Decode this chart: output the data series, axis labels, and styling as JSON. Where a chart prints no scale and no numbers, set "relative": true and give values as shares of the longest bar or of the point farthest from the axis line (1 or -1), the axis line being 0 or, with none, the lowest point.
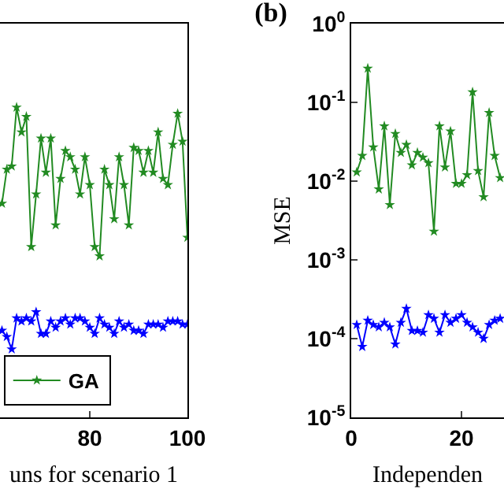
{
  "chart_data": [
    {
      "type": "line",
      "relative": true,
      "tick_labels": "x",
      "xlabel": "uns for scenario 1",
      "xlim": [
        61.6,
        100
      ],
      "xticks": [
        80,
        100
      ],
      "legend": "bottom",
      "marker": "star",
      "grid": false,
      "x": [
        62,
        63,
        64,
        65,
        66,
        67,
        68,
        69,
        70,
        71,
        72,
        73,
        74,
        75,
        76,
        77,
        78,
        79,
        80,
        81,
        82,
        83,
        84,
        85,
        86,
        87,
        88,
        89,
        90,
        91,
        92,
        93,
        94,
        95,
        96,
        97,
        98,
        99,
        100
      ],
      "series": [
        {
          "name": "GA",
          "color": "#228b22",
          "values": [
            0.69,
            0.8,
            0.81,
            1.0,
            0.92,
            0.97,
            0.55,
            0.72,
            0.9,
            0.79,
            0.9,
            0.62,
            0.77,
            0.86,
            0.84,
            0.8,
            0.72,
            0.84,
            0.75,
            0.55,
            0.52,
            0.8,
            0.75,
            0.64,
            0.84,
            0.75,
            0.62,
            0.87,
            0.86,
            0.79,
            0.86,
            0.79,
            0.92,
            0.77,
            0.75,
            0.88,
            0.98,
            0.89,
            0.58
          ]
        },
        {
          "color": "#0000ff",
          "values": [
            0.28,
            0.26,
            0.22,
            0.32,
            0.31,
            0.32,
            0.31,
            0.34,
            0.27,
            0.27,
            0.31,
            0.29,
            0.31,
            0.32,
            0.3,
            0.32,
            0.32,
            0.31,
            0.29,
            0.27,
            0.32,
            0.3,
            0.29,
            0.27,
            0.31,
            0.29,
            0.3,
            0.28,
            0.28,
            0.27,
            0.3,
            0.3,
            0.3,
            0.29,
            0.31,
            0.31,
            0.31,
            0.3,
            0.3
          ]
        }
      ]
    },
    {
      "type": "line",
      "title": "(b)",
      "xlabel": "Independen",
      "ylabel": "MSE",
      "log": true,
      "xlim": [
        0,
        27.7
      ],
      "xticks": [
        0,
        20
      ],
      "ylim": [
        1e-05,
        1
      ],
      "yticks": [
        {
          "value": 1,
          "label": "10$^{0}$"
        },
        {
          "value": 0.1,
          "label": "10$^{-1}$"
        },
        {
          "value": 0.01,
          "label": "10$^{-2}$"
        },
        {
          "value": 0.001,
          "label": "10$^{-3}$"
        },
        {
          "value": 0.0001,
          "label": "10$^{-4}$"
        },
        {
          "value": 1e-05,
          "label": "10$^{-5}$"
        }
      ],
      "marker": "star",
      "grid": false,
      "x": [
        1,
        2,
        3,
        4,
        5,
        6,
        7,
        8,
        9,
        10,
        11,
        12,
        13,
        14,
        15,
        16,
        17,
        18,
        19,
        20,
        21,
        22,
        23,
        24,
        25,
        26,
        27
      ],
      "series": [
        {
          "color": "#228b22",
          "values": [
            0.013,
            0.021,
            0.27,
            0.027,
            0.0079,
            0.05,
            0.005,
            0.04,
            0.023,
            0.029,
            0.016,
            0.023,
            0.02,
            0.017,
            0.0023,
            0.05,
            0.015,
            0.043,
            0.0093,
            0.0093,
            0.012,
            0.135,
            0.0135,
            0.0063,
            0.074,
            0.021,
            0.011
          ]
        },
        {
          "color": "#0000ff",
          "values": [
            0.00015,
            7.9e-05,
            0.00017,
            0.00015,
            0.00014,
            0.00016,
            0.00014,
            8.5e-05,
            0.00016,
            0.00024,
            0.000126,
            0.000126,
            0.00012,
            0.0002,
            0.00018,
            0.00012,
            0.0002,
            0.00016,
            0.00018,
            0.0002,
            0.00016,
            0.00014,
            0.00012,
            0.0001,
            0.00015,
            0.00017,
            0.00018
          ]
        }
      ]
    }
  ]
}
